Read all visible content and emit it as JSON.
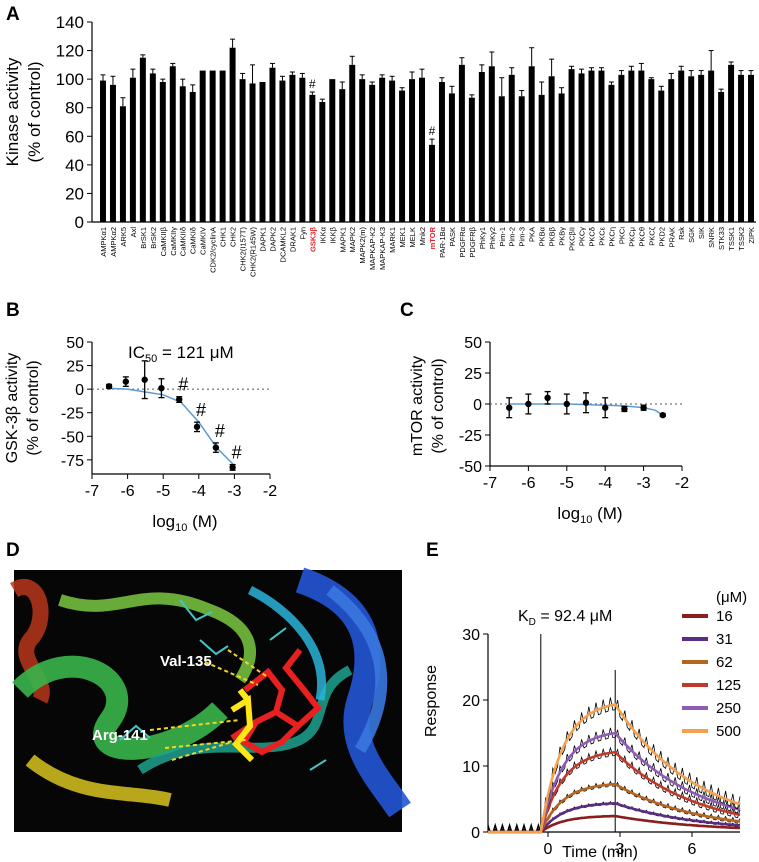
{
  "panels": {
    "a": {
      "letter": "A",
      "ylabel1": "Kinase activity",
      "ylabel2": "(% of control)"
    },
    "b": {
      "letter": "B",
      "ylabel1": "GSK-3β activity",
      "ylabel2": "(% of control)",
      "ic50_prefix": "IC",
      "ic50_sub": "50",
      "ic50_value": " = 121 μM",
      "xlabel_main": "log",
      "xlabel_sub": "10",
      "xlabel_unit": " (M)"
    },
    "c": {
      "letter": "C",
      "ylabel1": "mTOR activity",
      "ylabel2": "(% of control)",
      "xlabel_main": "log",
      "xlabel_sub": "10",
      "xlabel_unit": " (M)"
    },
    "d": {
      "letter": "D",
      "residue1": "Val-135",
      "residue2": "Arg-141"
    },
    "e": {
      "letter": "E",
      "kd_prefix": "K",
      "kd_sub": "D",
      "kd_value": " = 92.4 μM",
      "legend_title": "(μM)",
      "ylabel": "Response",
      "xlabel": "Time (min)"
    }
  },
  "colors": {
    "bar": "#000000",
    "highlight": "#e8202a",
    "fit_line": "#5b9bd5",
    "sensor": [
      "#8b1d1d",
      "#5a2d82",
      "#b5651d",
      "#c0392b",
      "#8e5bb5",
      "#f5a04a"
    ]
  },
  "chart_data": [
    {
      "panel": "A",
      "type": "bar",
      "title": "",
      "xlabel": "",
      "ylabel": "Kinase activity (% of control)",
      "ylim": [
        0,
        140
      ],
      "yticks": [
        0,
        20,
        40,
        60,
        80,
        100,
        120,
        140
      ],
      "categories": [
        "AMPKα1",
        "AMPKα2",
        "ARK5",
        "Axl",
        "BrSK1",
        "BrSK2",
        "CaMKIIβ",
        "CaMKIIγ",
        "CaMKIIδ",
        "CaMKIδ",
        "CaMKIV",
        "CDK2/cyclinA",
        "CHK1",
        "CHK2",
        "CHK2(I157T)",
        "CHK2(R145W)",
        "DAPK1",
        "DAPK2",
        "DCAMKL2",
        "DRAK1",
        "Fyn",
        "GSK3β",
        "IKKα",
        "IKKβ",
        "MAPK1",
        "MAPK2",
        "MAPK2(m)",
        "MAPKAP-K2",
        "MAPKAP-K3",
        "MARK1",
        "MEK1",
        "MELK",
        "Mnk2",
        "mTOR",
        "PAR-1Bα",
        "PASK",
        "PDGFRα",
        "PDGFRβ",
        "PhKγ1",
        "PhKγ2",
        "Pim-1",
        "Pim-2",
        "Pim-3",
        "PKA",
        "PKBα",
        "PKBβ",
        "PKBγ",
        "PKCβII",
        "PKCγ",
        "PKCδ",
        "PKCε",
        "PKCη",
        "PKCι",
        "PKCμ",
        "PKCθ",
        "PKCζ",
        "PKD2",
        "PRAK",
        "Rsk",
        "SGK",
        "SIK",
        "SNRK",
        "STK33",
        "TSSK1",
        "TSSK2",
        "ZIPK"
      ],
      "values": [
        99,
        96,
        81,
        101,
        115,
        104,
        98,
        109,
        95,
        91,
        106,
        106,
        106,
        122,
        100,
        97,
        98,
        108,
        99,
        103,
        101,
        89,
        84,
        100,
        93,
        110,
        100,
        96,
        101,
        99,
        92,
        100,
        101,
        54,
        98,
        90,
        110,
        87,
        105,
        109,
        88,
        103,
        88,
        109,
        89,
        102,
        90,
        107,
        104,
        106,
        106,
        96,
        103,
        106,
        106,
        100,
        92,
        100,
        106,
        102,
        103,
        106,
        91,
        110,
        103,
        103
      ],
      "errors": [
        4,
        6,
        6,
        6,
        2,
        3,
        2,
        2,
        5,
        5,
        0,
        0,
        0,
        6,
        4,
        13,
        0,
        3,
        3,
        2,
        3,
        2,
        2,
        0,
        5,
        6,
        3,
        2,
        2,
        3,
        2,
        5,
        6,
        4,
        3,
        5,
        5,
        2,
        5,
        10,
        13,
        5,
        4,
        13,
        9,
        12,
        4,
        2,
        3,
        2,
        2,
        2,
        3,
        3,
        5,
        1,
        3,
        4,
        3,
        4,
        3,
        14,
        2,
        2,
        3,
        3
      ],
      "highlighted": [
        "GSK3β",
        "mTOR"
      ],
      "annotations": [
        {
          "category": "GSK3β",
          "text": "#"
        },
        {
          "category": "mTOR",
          "text": "#"
        }
      ]
    },
    {
      "panel": "B",
      "type": "scatter",
      "title": "IC50 = 121 μM",
      "xlabel": "log10 (M)",
      "ylabel": "GSK-3β activity (% of control)",
      "xlim": [
        -7,
        -2
      ],
      "ylim": [
        -90,
        50
      ],
      "xticks": [
        -7,
        -6,
        -5,
        -4,
        -3,
        -2
      ],
      "yticks": [
        -75,
        -50,
        -25,
        0,
        25,
        50
      ],
      "x": [
        -6.52,
        -6.05,
        -5.52,
        -5.05,
        -4.55,
        -4.05,
        -3.52,
        -3.05
      ],
      "y": [
        3,
        8,
        10,
        1,
        -11,
        -40,
        -62,
        -83
      ],
      "errors": [
        2,
        5,
        20,
        10,
        3,
        5,
        5,
        3
      ],
      "fit_x": [
        -6.6,
        -6.0,
        -5.5,
        -5.0,
        -4.5,
        -4.0,
        -3.5,
        -3.0
      ],
      "fit_y": [
        1,
        0,
        -3,
        -6,
        -14,
        -35,
        -62,
        -81
      ],
      "markers": [
        {
          "x": -4.55,
          "text": "#"
        },
        {
          "x": -4.05,
          "text": "#"
        },
        {
          "x": -3.52,
          "text": "#"
        },
        {
          "x": -3.05,
          "text": "#"
        }
      ]
    },
    {
      "panel": "C",
      "type": "scatter",
      "title": "",
      "xlabel": "log10 (M)",
      "ylabel": "mTOR activity (% of control)",
      "xlim": [
        -7,
        -2
      ],
      "ylim": [
        -50,
        50
      ],
      "xticks": [
        -7,
        -6,
        -5,
        -4,
        -3,
        -2
      ],
      "yticks": [
        -50,
        -25,
        0,
        25,
        50
      ],
      "x": [
        -6.5,
        -6.0,
        -5.5,
        -5.0,
        -4.5,
        -4.0,
        -3.5,
        -3.0,
        -2.5
      ],
      "y": [
        -3,
        0,
        5,
        0,
        1,
        -3,
        -4,
        -3,
        -9
      ],
      "errors": [
        8,
        8,
        5,
        8,
        8,
        8,
        2,
        2,
        1
      ],
      "fit_x": [
        -6.5,
        -6.0,
        -5.5,
        -5.0,
        -4.5,
        -4.0,
        -3.5,
        -3.0,
        -2.7,
        -2.5
      ],
      "fit_y": [
        0,
        0,
        0,
        0,
        -0.5,
        -1,
        -1.5,
        -3,
        -5,
        -9
      ]
    },
    {
      "panel": "E",
      "type": "line",
      "title": "KD = 92.4 μM",
      "xlabel": "Time (min)",
      "ylabel": "Response",
      "xlim": [
        -2.5,
        8
      ],
      "ylim": [
        0,
        30
      ],
      "xticks": [
        0,
        3,
        6
      ],
      "yticks": [
        0,
        10,
        20,
        30
      ],
      "injection_start": -0.3,
      "injection_end": 2.8,
      "legend_title": "(μM)",
      "series": [
        {
          "name": "16",
          "plateau": 2.5,
          "dissoc_end": 0.6
        },
        {
          "name": "31",
          "plateau": 4.5,
          "dissoc_end": 1.0
        },
        {
          "name": "62",
          "plateau": 7.5,
          "dissoc_end": 1.6
        },
        {
          "name": "125",
          "plateau": 12.5,
          "dissoc_end": 2.6
        },
        {
          "name": "250",
          "plateau": 15.5,
          "dissoc_end": 3.4
        },
        {
          "name": "500",
          "plateau": 20.0,
          "dissoc_end": 4.2
        }
      ]
    }
  ]
}
